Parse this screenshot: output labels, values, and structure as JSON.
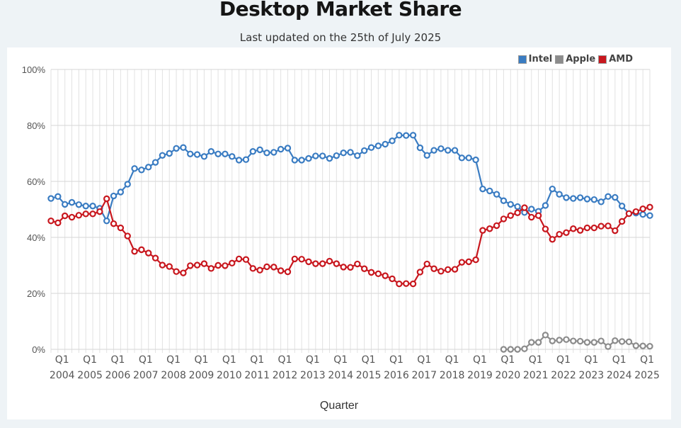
{
  "header": {
    "title": "Desktop Market Share",
    "subtitle": "Last updated on the 25th of July 2025"
  },
  "chart_data": {
    "type": "line",
    "title": "Desktop Market Share",
    "subtitle": "Last updated on the 25th of July 2025",
    "xlabel": "Quarter",
    "ylabel": "",
    "ylim": [
      0,
      100
    ],
    "yticks": [
      "0%",
      "20%",
      "40%",
      "60%",
      "80%",
      "100%"
    ],
    "ytick_values": [
      0,
      20,
      40,
      60,
      80,
      100
    ],
    "grid": true,
    "legend": "top-right",
    "x_start": "Q4 2003",
    "x_end": "Q2 2025",
    "x_tick_labels": [
      {
        "quarter": "Q1",
        "year": "2004",
        "index": 1
      },
      {
        "quarter": "Q1",
        "year": "2005",
        "index": 5
      },
      {
        "quarter": "Q1",
        "year": "2006",
        "index": 9
      },
      {
        "quarter": "Q1",
        "year": "2007",
        "index": 13
      },
      {
        "quarter": "Q1",
        "year": "2008",
        "index": 17
      },
      {
        "quarter": "Q1",
        "year": "2009",
        "index": 21
      },
      {
        "quarter": "Q1",
        "year": "2010",
        "index": 25
      },
      {
        "quarter": "Q1",
        "year": "2011",
        "index": 29
      },
      {
        "quarter": "Q1",
        "year": "2012",
        "index": 33
      },
      {
        "quarter": "Q1",
        "year": "2013",
        "index": 37
      },
      {
        "quarter": "Q1",
        "year": "2014",
        "index": 41
      },
      {
        "quarter": "Q1",
        "year": "2015",
        "index": 45
      },
      {
        "quarter": "Q1",
        "year": "2016",
        "index": 49
      },
      {
        "quarter": "Q1",
        "year": "2017",
        "index": 53
      },
      {
        "quarter": "Q1",
        "year": "2018",
        "index": 57
      },
      {
        "quarter": "Q1",
        "year": "2019",
        "index": 61
      },
      {
        "quarter": "Q1",
        "year": "2020",
        "index": 65
      },
      {
        "quarter": "Q1",
        "year": "2021",
        "index": 69
      },
      {
        "quarter": "Q1",
        "year": "2022",
        "index": 73
      },
      {
        "quarter": "Q1",
        "year": "2023",
        "index": 77
      },
      {
        "quarter": "Q1",
        "year": "2024",
        "index": 81
      },
      {
        "quarter": "Q1",
        "year": "2025",
        "index": 85
      }
    ],
    "point_count": 87,
    "series": [
      {
        "name": "Intel",
        "color": "#3a7cc2",
        "start_index": 0,
        "values": [
          53.9,
          54.6,
          51.8,
          52.5,
          51.7,
          51.2,
          51.2,
          50.4,
          45.9,
          54.8,
          56.2,
          59.0,
          64.6,
          64.1,
          65.1,
          66.8,
          69.3,
          70.0,
          71.8,
          72.1,
          69.8,
          69.6,
          68.9,
          70.7,
          69.8,
          69.8,
          68.9,
          67.6,
          67.8,
          70.7,
          71.3,
          70.2,
          70.4,
          71.5,
          71.9,
          67.6,
          67.6,
          68.2,
          69.1,
          69.1,
          68.2,
          69.2,
          70.2,
          70.4,
          69.2,
          71.0,
          72.1,
          72.7,
          73.3,
          74.5,
          76.5,
          76.4,
          76.5,
          72.0,
          69.3,
          71.1,
          71.7,
          71.1,
          71.1,
          68.4,
          68.4,
          67.7,
          57.3,
          56.6,
          55.4,
          53.1,
          51.8,
          51.0,
          48.9,
          50.1,
          49.3,
          51.4,
          57.3,
          55.4,
          54.2,
          53.9,
          54.2,
          53.7,
          53.5,
          52.7,
          54.6,
          54.3,
          51.2,
          48.5,
          48.7,
          48.2,
          47.8
        ]
      },
      {
        "name": "Apple",
        "color": "#8c8c8c",
        "start_index": 65,
        "values": [
          0.0,
          0.0,
          0.0,
          0.2,
          2.5,
          2.5,
          5.1,
          3.0,
          3.3,
          3.5,
          3.0,
          2.9,
          2.5,
          2.5,
          3.0,
          1.0,
          3.1,
          2.8,
          2.7,
          1.3,
          1.2,
          1.1
        ]
      },
      {
        "name": "AMD",
        "color": "#c8171e",
        "start_index": 0,
        "values": [
          45.9,
          45.2,
          47.7,
          47.2,
          47.9,
          48.4,
          48.4,
          49.2,
          53.8,
          44.9,
          43.4,
          40.5,
          35.0,
          35.6,
          34.4,
          32.6,
          30.1,
          29.6,
          27.8,
          27.3,
          29.9,
          30.1,
          30.6,
          28.9,
          30.0,
          29.9,
          30.8,
          32.3,
          32.1,
          28.9,
          28.3,
          29.5,
          29.4,
          28.1,
          27.7,
          32.3,
          32.2,
          31.3,
          30.6,
          30.6,
          31.5,
          30.6,
          29.4,
          29.3,
          30.5,
          28.8,
          27.5,
          27.0,
          26.3,
          25.2,
          23.4,
          23.5,
          23.4,
          27.6,
          30.5,
          28.8,
          27.9,
          28.5,
          28.6,
          31.1,
          31.3,
          32.0,
          42.5,
          43.1,
          44.2,
          46.6,
          47.8,
          48.8,
          50.6,
          47.2,
          47.8,
          43.0,
          39.3,
          41.1,
          41.7,
          43.1,
          42.5,
          43.4,
          43.4,
          44.0,
          44.1,
          42.4,
          45.7,
          48.5,
          49.2,
          50.2,
          50.8
        ]
      }
    ]
  },
  "legend": {
    "items": [
      {
        "label": "Intel",
        "color": "#3a7cc2"
      },
      {
        "label": "Apple",
        "color": "#8c8c8c"
      },
      {
        "label": "AMD",
        "color": "#c8171e"
      }
    ]
  }
}
